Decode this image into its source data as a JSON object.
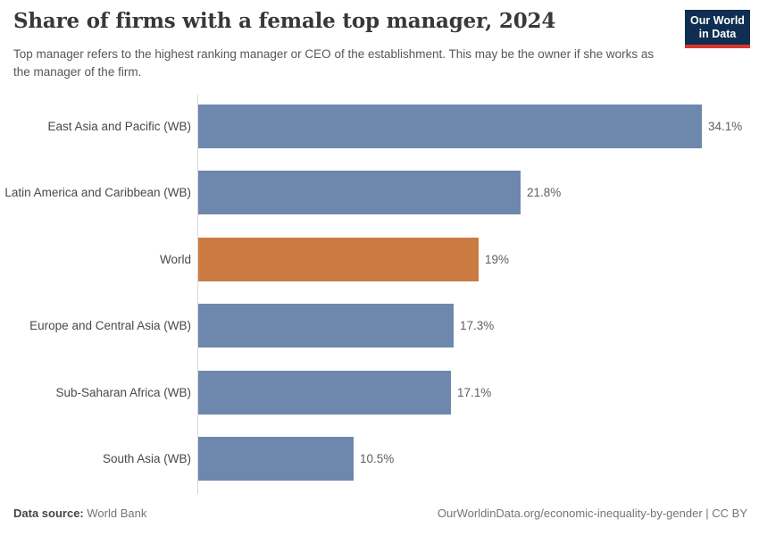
{
  "header": {
    "title": "Share of firms with a female top manager, 2024",
    "subtitle": "Top manager refers to the highest ranking manager or CEO of the establishment. This may be the owner if she works as the manager of the firm.",
    "logo": {
      "line1": "Our World",
      "line2": "in Data"
    }
  },
  "chart_data": {
    "type": "bar",
    "orientation": "horizontal",
    "title": "Share of firms with a female top manager, 2024",
    "subtitle": "Top manager refers to the highest ranking manager or CEO of the establishment. This may be the owner if she works as the manager of the firm.",
    "unit": "%",
    "categories": [
      "East Asia and Pacific (WB)",
      "Latin America and Caribbean (WB)",
      "World",
      "Europe and Central Asia (WB)",
      "Sub-Saharan Africa (WB)",
      "South Asia (WB)"
    ],
    "values": [
      34.1,
      21.8,
      19,
      17.3,
      17.1,
      10.5
    ],
    "value_labels": [
      "34.1%",
      "21.8%",
      "19%",
      "17.3%",
      "17.1%",
      "10.5%"
    ],
    "highlight_category": "World",
    "xlim": [
      0,
      34.1
    ],
    "grid": false,
    "legend": false,
    "colors": {
      "default_bar": "#6e87ad",
      "highlight_bar": "#cb7a42",
      "axis_line": "#d9d9d9",
      "logo_navy": "#0f2e52",
      "logo_red": "#dc352e"
    }
  },
  "footer": {
    "source_label": "Data source:",
    "source_value": "World Bank",
    "url": "OurWorldinData.org/economic-inequality-by-gender",
    "license_suffix": " | CC BY"
  }
}
